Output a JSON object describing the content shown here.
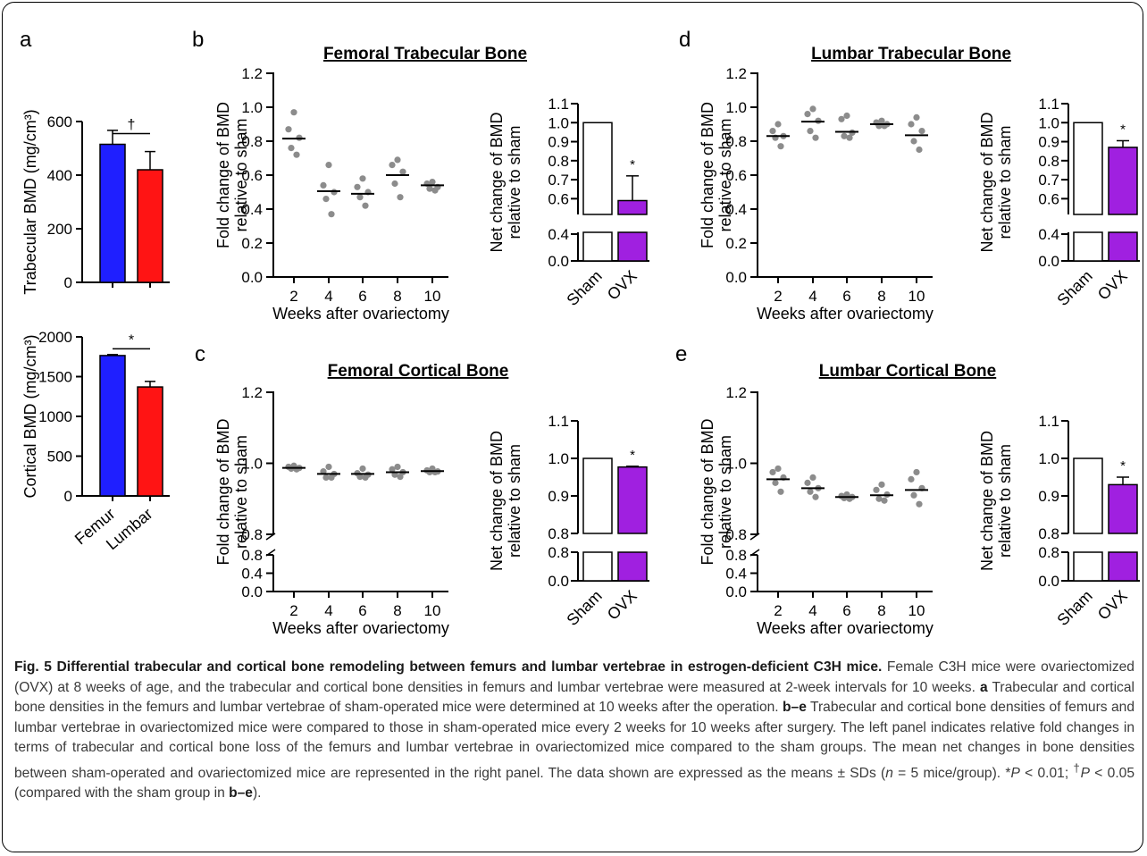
{
  "colors": {
    "femur": "#1f1fff",
    "lumbar": "#ff1414",
    "ovx": "#a020e0",
    "sham": "#ffffff",
    "dot": "#8c8c8c",
    "axis": "#000000"
  },
  "chart_data": [
    {
      "panel": "a-top",
      "type": "bar",
      "ylabel": "Trabecular BMD (mg/cm³)",
      "categories": [
        "Femur",
        "Lumbar"
      ],
      "values": [
        515,
        420
      ],
      "errors": [
        52,
        68
      ],
      "ylim": [
        0,
        600
      ],
      "yticks": [
        "0",
        "200",
        "400",
        "600"
      ],
      "annotation": "†"
    },
    {
      "panel": "a-bottom",
      "type": "bar",
      "ylabel": "Cortical BMD (mg/cm³)",
      "categories": [
        "Femur",
        "Lumbar"
      ],
      "values": [
        1765,
        1370
      ],
      "errors": [
        12,
        70
      ],
      "ylim": [
        0,
        2000
      ],
      "yticks": [
        "0",
        "500",
        "1000",
        "1500",
        "2000"
      ],
      "xticklabels": [
        "Femur",
        "Lumbar"
      ],
      "annotation": "*"
    },
    {
      "panel": "b",
      "type": "scatter",
      "title": "Femoral Trabecular Bone",
      "xlabel": "Weeks after ovariectomy",
      "ylabel": [
        "Fold change of BMD",
        "relative to sham"
      ],
      "x": [
        2,
        4,
        6,
        8,
        10
      ],
      "points": [
        [
          0.97,
          0.87,
          0.82,
          0.76,
          0.72
        ],
        [
          0.66,
          0.54,
          0.5,
          0.46,
          0.37
        ],
        [
          0.58,
          0.53,
          0.5,
          0.47,
          0.42
        ],
        [
          0.69,
          0.66,
          0.62,
          0.55,
          0.47
        ],
        [
          0.56,
          0.55,
          0.53,
          0.52,
          0.51
        ]
      ],
      "means": [
        0.815,
        0.505,
        0.49,
        0.6,
        0.54
      ],
      "ylim": [
        0,
        1.2
      ],
      "yticks": [
        "0.0",
        "0.2",
        "0.4",
        "0.6",
        "0.8",
        "1.0",
        "1.2"
      ],
      "xticks": [
        "2",
        "4",
        "6",
        "8",
        "10"
      ]
    },
    {
      "panel": "b-net",
      "type": "bar",
      "ylabel": [
        "Net change of BMD",
        "relative to sham"
      ],
      "categories": [
        "Sham",
        "OVX"
      ],
      "values": [
        1.0,
        0.59
      ],
      "errors": [
        0,
        0.13
      ],
      "ylim": [
        0,
        1.1
      ],
      "yticks": [
        "0.0",
        "0.4",
        "0.6",
        "0.7",
        "0.8",
        "0.9",
        "1.0",
        "1.1"
      ],
      "annotation": "*"
    },
    {
      "panel": "c",
      "type": "scatter",
      "title": "Femoral Cortical Bone",
      "xlabel": "Weeks after ovariectomy",
      "ylabel": [
        "Fold change of BMD",
        "relative to sham"
      ],
      "x": [
        2,
        4,
        6,
        8,
        10
      ],
      "points": [
        [
          0.993,
          0.99,
          0.987,
          0.985,
          0.983
        ],
        [
          0.99,
          0.977,
          0.97,
          0.96,
          0.96
        ],
        [
          0.985,
          0.972,
          0.968,
          0.962,
          0.96
        ],
        [
          0.99,
          0.983,
          0.975,
          0.968,
          0.962
        ],
        [
          0.985,
          0.98,
          0.977,
          0.975,
          0.975
        ]
      ],
      "means": [
        0.987,
        0.97,
        0.97,
        0.975,
        0.978
      ],
      "ylim": [
        0,
        1.2
      ],
      "yticks": [
        "0.0",
        "0.4",
        "0.8",
        "0.8",
        "1.0",
        "1.2"
      ],
      "xticks": [
        "2",
        "4",
        "6",
        "8",
        "10"
      ]
    },
    {
      "panel": "c-net",
      "type": "bar",
      "ylabel": [
        "Net change of BMD",
        "relative to sham"
      ],
      "categories": [
        "Sham",
        "OVX"
      ],
      "values": [
        1.0,
        0.977
      ],
      "errors": [
        0,
        0.002
      ],
      "ylim": [
        0,
        1.1
      ],
      "yticks": [
        "0.0",
        "0.8",
        "0.8",
        "0.9",
        "1.0",
        "1.1"
      ],
      "annotation": "*"
    },
    {
      "panel": "d",
      "type": "scatter",
      "title": "Lumbar Trabecular Bone",
      "xlabel": "Weeks after ovariectomy",
      "ylabel": [
        "Fold change of BMD",
        "relative to sham"
      ],
      "x": [
        2,
        4,
        6,
        8,
        10
      ],
      "points": [
        [
          0.9,
          0.86,
          0.83,
          0.82,
          0.77
        ],
        [
          0.99,
          0.96,
          0.92,
          0.86,
          0.82
        ],
        [
          0.95,
          0.93,
          0.85,
          0.83,
          0.82
        ],
        [
          0.92,
          0.91,
          0.9,
          0.89,
          0.89
        ],
        [
          0.94,
          0.9,
          0.86,
          0.8,
          0.75
        ]
      ],
      "means": [
        0.83,
        0.915,
        0.855,
        0.9,
        0.835
      ],
      "ylim": [
        0,
        1.2
      ],
      "yticks": [
        "0.0",
        "0.2",
        "0.4",
        "0.6",
        "0.8",
        "1.0",
        "1.2"
      ],
      "xticks": [
        "2",
        "4",
        "6",
        "8",
        "10"
      ]
    },
    {
      "panel": "d-net",
      "type": "bar",
      "ylabel": [
        "Net change of BMD",
        "relative to sham"
      ],
      "categories": [
        "Sham",
        "OVX"
      ],
      "values": [
        1.0,
        0.87
      ],
      "errors": [
        0,
        0.035
      ],
      "ylim": [
        0,
        1.1
      ],
      "yticks": [
        "0.0",
        "0.4",
        "0.6",
        "0.7",
        "0.8",
        "0.9",
        "1.0",
        "1.1"
      ],
      "annotation": "*"
    },
    {
      "panel": "e",
      "type": "scatter",
      "title": "Lumbar Cortical Bone",
      "xlabel": "Weeks after ovariectomy",
      "ylabel": [
        "Fold change of BMD",
        "relative to sham"
      ],
      "x": [
        2,
        4,
        6,
        8,
        10
      ],
      "points": [
        [
          0.985,
          0.975,
          0.96,
          0.945,
          0.92
        ],
        [
          0.96,
          0.945,
          0.93,
          0.92,
          0.905
        ],
        [
          0.912,
          0.908,
          0.905,
          0.902,
          0.9
        ],
        [
          0.94,
          0.925,
          0.912,
          0.9,
          0.895
        ],
        [
          0.975,
          0.955,
          0.93,
          0.91,
          0.885
        ]
      ],
      "means": [
        0.955,
        0.93,
        0.905,
        0.91,
        0.925
      ],
      "ylim": [
        0,
        1.2
      ],
      "yticks": [
        "0.0",
        "0.4",
        "0.8",
        "0.8",
        "1.0",
        "1.2"
      ],
      "xticks": [
        "2",
        "4",
        "6",
        "8",
        "10"
      ]
    },
    {
      "panel": "e-net",
      "type": "bar",
      "ylabel": [
        "Net change of BMD",
        "relative to sham"
      ],
      "categories": [
        "Sham",
        "OVX"
      ],
      "values": [
        1.0,
        0.93
      ],
      "errors": [
        0,
        0.02
      ],
      "ylim": [
        0,
        1.1
      ],
      "yticks": [
        "0.0",
        "0.8",
        "0.8",
        "0.9",
        "1.0",
        "1.1"
      ],
      "annotation": "*"
    }
  ],
  "panel_letters": {
    "a": "a",
    "b": "b",
    "c": "c",
    "d": "d",
    "e": "e"
  },
  "caption": {
    "title": "Fig. 5 Differential trabecular and cortical bone remodeling between femurs and lumbar vertebrae in estrogen-deficient C3H mice.",
    "s1": " Female C3H mice were ovariectomized (OVX) at 8 weeks of age, and the trabecular and cortical bone densities in femurs and lumbar vertebrae were measured at 2-week intervals for 10 weeks. ",
    "a_label": "a",
    "s2": " Trabecular and cortical bone densities in the femurs and lumbar vertebrae of sham-operated mice were determined at 10 weeks after the operation. ",
    "be_label": "b–e",
    "s3": " Trabecular and cortical bone densities of femurs and lumbar vertebrae in ovariectomized mice were compared to those in sham-operated mice every 2 weeks for 10 weeks after surgery. The left panel indicates relative fold changes in terms of trabecular and cortical bone loss of the femurs and lumbar vertebrae in ovariectomized mice compared to the sham groups. The mean net changes in bone densities between sham-operated and ovariectomized mice are represented in the right panel. The data shown are expressed as the means ± SDs (",
    "n_var": "n",
    "s4": " = 5 mice/group). *",
    "p1": "P",
    "s5": " < 0.01; ",
    "dagger": "†",
    "p2": "P",
    "s6": " < 0.05 (compared with the sham group in ",
    "be_label2": "b–e",
    "s7": ")."
  }
}
